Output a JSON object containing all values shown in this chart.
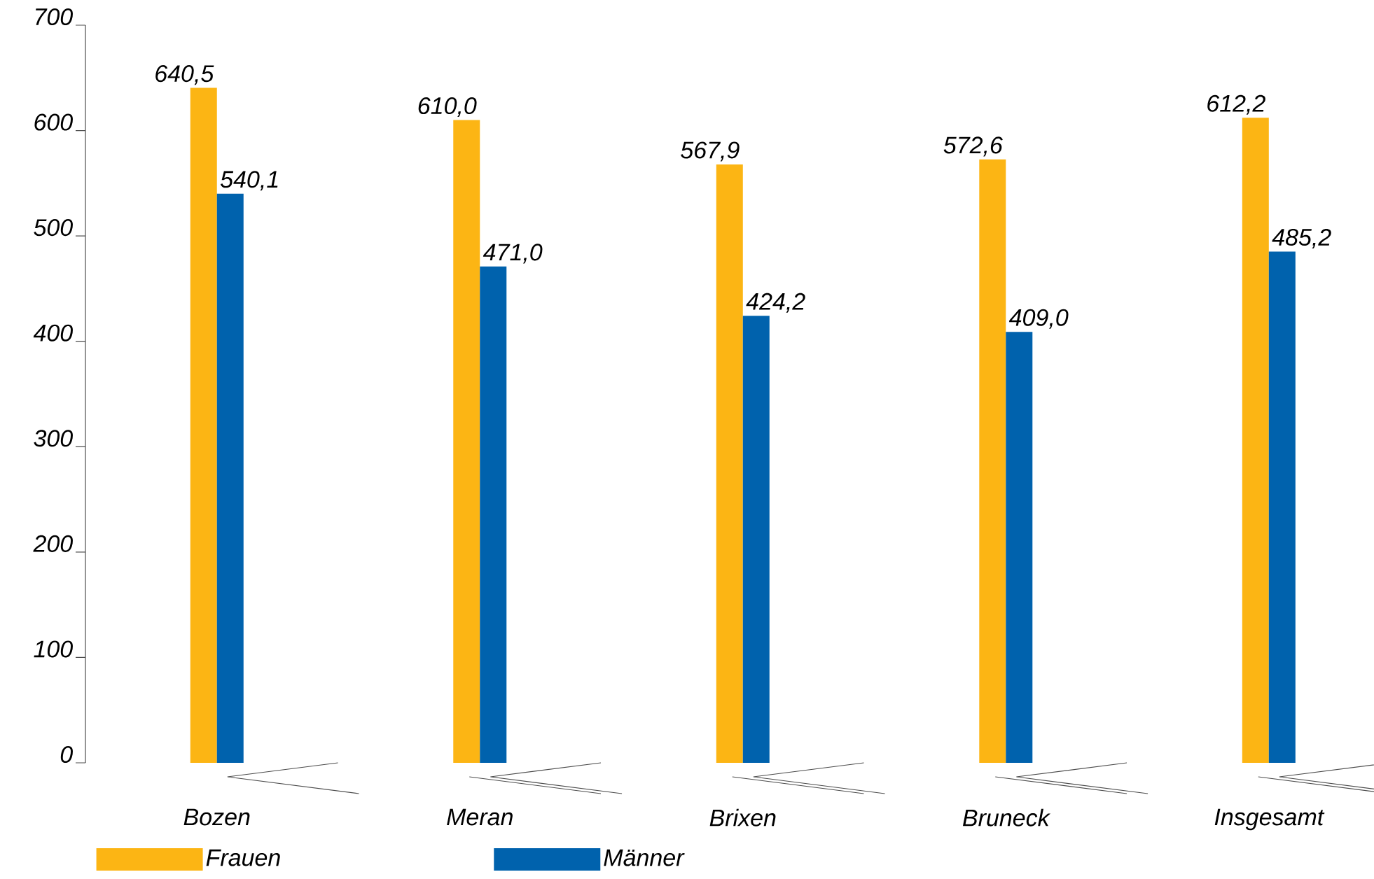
{
  "chart_data": {
    "type": "bar",
    "categories": [
      "Bozen",
      "Meran",
      "Brixen",
      "Bruneck",
      "Insgesamt"
    ],
    "series": [
      {
        "name": "Frauen",
        "color": "#fcb514",
        "values": [
          640.5,
          610.0,
          567.9,
          572.6,
          612.2
        ],
        "value_labels": [
          "640,5",
          "610,0",
          "567,9",
          "572,6",
          "612,2"
        ]
      },
      {
        "name": "Männer",
        "color": "#0062ad",
        "values": [
          540.1,
          471.0,
          424.2,
          409.0,
          485.2
        ],
        "value_labels": [
          "540,1",
          "471,0",
          "424,2",
          "409,0",
          "485,2"
        ]
      }
    ],
    "ylim": [
      0,
      700
    ],
    "yticks": [
      0,
      100,
      200,
      300,
      400,
      500,
      600,
      700
    ],
    "legend": "bottom left",
    "grid": false
  }
}
